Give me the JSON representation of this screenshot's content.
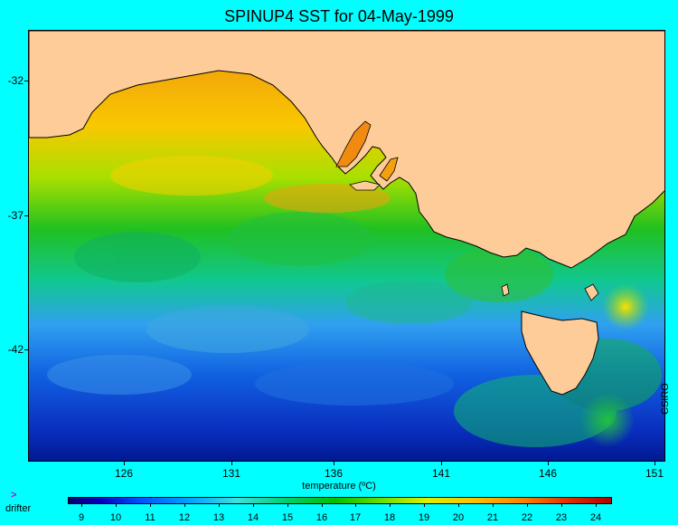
{
  "title": "SPINUP4 SST for 04-May-1999",
  "map": {
    "type": "sea-surface-temperature",
    "colors": {
      "land": "#fdcc99",
      "background": "#00ffff",
      "warm_water": "#ff9a1a",
      "cold_water": "#0a3cc8"
    },
    "latitude_ticks": [
      "-32",
      "-37",
      "-42"
    ],
    "longitude_ticks": [
      "126",
      "131",
      "136",
      "141",
      "146",
      "151"
    ],
    "xlabel": "temperature (ºC)",
    "credit": "CSIRO"
  },
  "legend": {
    "marker": ">",
    "label": "drifter"
  },
  "colorbar": {
    "ticks": [
      "9",
      "10",
      "11",
      "12",
      "13",
      "14",
      "15",
      "16",
      "17",
      "18",
      "19",
      "20",
      "21",
      "22",
      "23",
      "24"
    ]
  }
}
